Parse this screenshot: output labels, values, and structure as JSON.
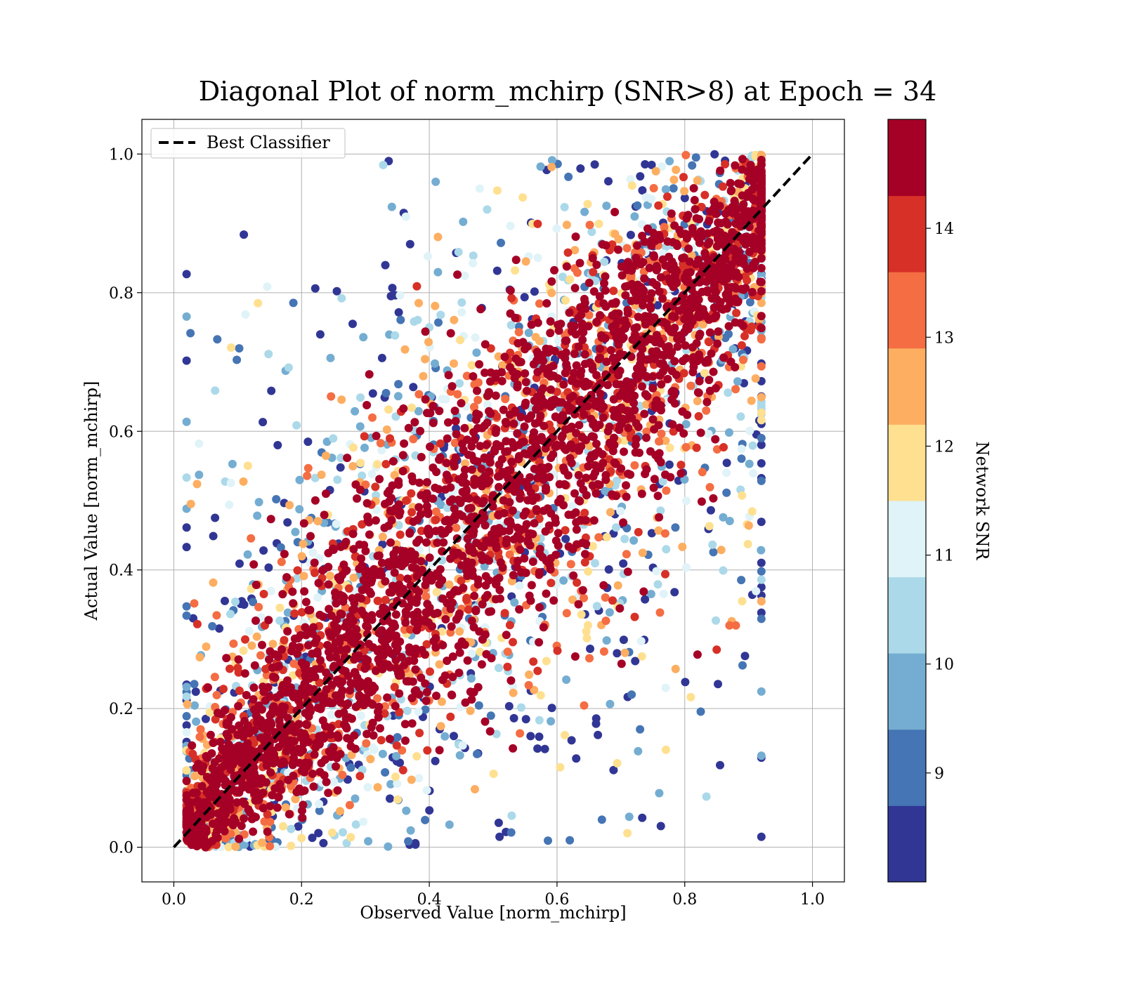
{
  "chart_data": {
    "type": "scatter",
    "title": "Diagonal Plot of norm_mchirp (SNR>8) at Epoch = 34",
    "xlabel": "Observed Value [norm_mchirp]",
    "ylabel": "Actual Value [norm_mchirp]",
    "xlim": [
      -0.05,
      1.05
    ],
    "ylim": [
      -0.05,
      1.05
    ],
    "x_ticks": [
      "0.0",
      "0.2",
      "0.4",
      "0.6",
      "0.8",
      "1.0"
    ],
    "y_ticks": [
      "0.0",
      "0.2",
      "0.4",
      "0.6",
      "0.8",
      "1.0"
    ],
    "grid": true,
    "legend": {
      "placement": "upper-left",
      "entries": [
        "Best Classifier"
      ]
    },
    "reference_line": {
      "label": "Best Classifier",
      "style": "dashed",
      "color": "#000000",
      "from": [
        0,
        0
      ],
      "to": [
        1,
        1
      ]
    },
    "colorbar": {
      "label": "Network SNR",
      "range": [
        8,
        15
      ],
      "ticks": [
        "9",
        "10",
        "11",
        "12",
        "13",
        "14"
      ],
      "levels": [
        8,
        8.7,
        9.4,
        10.1,
        10.8,
        11.5,
        12.2,
        12.9,
        13.6,
        14.3,
        15
      ],
      "colors": [
        "#313695",
        "#4575b4",
        "#74add1",
        "#abd9e9",
        "#e0f3f8",
        "#fee090",
        "#fdae61",
        "#f46d43",
        "#d73027",
        "#a50026"
      ]
    },
    "spread_profile": {
      "description_of_shape": "points concentrated along y = x; high-SNR points (dark red) close to the diagonal, low-SNR points (blue) scattered further away",
      "x_range": [
        0.02,
        0.92
      ],
      "y_range": [
        0.0,
        1.0
      ]
    },
    "outlier_points": [
      {
        "x": 0.36,
        "y": 0.915,
        "snr": 8.2
      },
      {
        "x": 0.37,
        "y": 0.87,
        "snr": 8.2
      },
      {
        "x": 0.41,
        "y": 0.96,
        "snr": 9.5
      },
      {
        "x": 0.34,
        "y": 0.795,
        "snr": 8.2
      },
      {
        "x": 0.28,
        "y": 0.755,
        "snr": 8.2
      },
      {
        "x": 0.4,
        "y": 0.75,
        "snr": 10.5
      },
      {
        "x": 0.11,
        "y": 0.35,
        "snr": 8.2
      },
      {
        "x": 0.21,
        "y": 0.585,
        "snr": 8.2
      },
      {
        "x": 0.24,
        "y": 0.585,
        "snr": 9.5
      },
      {
        "x": 0.89,
        "y": 0.355,
        "snr": 12.0
      },
      {
        "x": 0.87,
        "y": 0.32,
        "snr": 13.5
      },
      {
        "x": 0.88,
        "y": 0.32,
        "snr": 13.5
      },
      {
        "x": 0.85,
        "y": 0.285,
        "snr": 14.0
      },
      {
        "x": 0.82,
        "y": 0.278,
        "snr": 14.5
      },
      {
        "x": 0.76,
        "y": 0.078,
        "snr": 9.8
      },
      {
        "x": 0.62,
        "y": 0.01,
        "snr": 9.2
      },
      {
        "x": 0.52,
        "y": 0.022,
        "snr": 8.2
      },
      {
        "x": 0.51,
        "y": 0.015,
        "snr": 8.2
      },
      {
        "x": 0.73,
        "y": 0.17,
        "snr": 9.2
      },
      {
        "x": 0.63,
        "y": 0.128,
        "snr": 8.2
      },
      {
        "x": 0.77,
        "y": 0.23,
        "snr": 11.0
      }
    ]
  }
}
